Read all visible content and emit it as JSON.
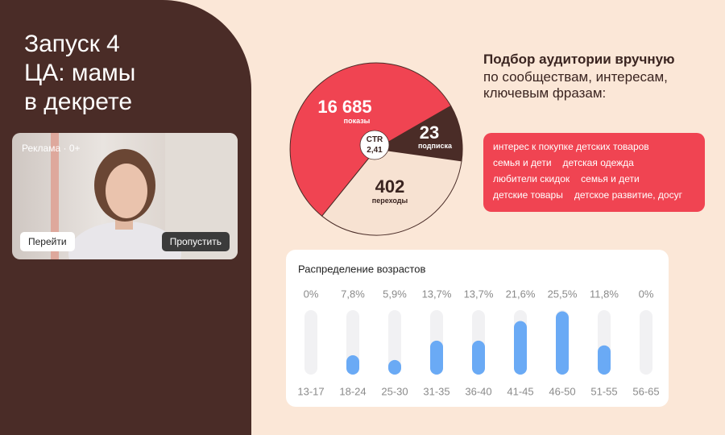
{
  "header": {
    "title_lines": [
      "Запуск 4",
      "ЦА: мамы",
      "в декрете"
    ]
  },
  "ad_preview": {
    "label": "Реклама",
    "age_rating": "0+",
    "buttons": [
      "Перейти",
      "Пропустить"
    ]
  },
  "funnel": {
    "center_label": "CTR",
    "center_value": "2,41",
    "segments": [
      {
        "value": "16 685",
        "label": "показы"
      },
      {
        "value": "23",
        "label": "подписка"
      },
      {
        "value": "402",
        "label": "переходы"
      }
    ]
  },
  "targeting": {
    "title": "Подбор аудитории вручную",
    "subtitle_lines": [
      "по сообществам, интересам,",
      "ключевым фразам:"
    ],
    "tags": [
      "интерес к покупке детских товаров",
      "семья и дети",
      "детская одежда",
      "любители скидок",
      "семья и дети",
      "детские товары",
      "детское развитие, досуг"
    ]
  },
  "chart_data": {
    "type": "bar",
    "title": "Распределение возрастов",
    "categories": [
      "13-17",
      "18-24",
      "25-30",
      "31-35",
      "36-40",
      "41-45",
      "46-50",
      "51-55",
      "56-65"
    ],
    "values": [
      0,
      7.8,
      5.9,
      13.7,
      13.7,
      21.6,
      25.5,
      11.8,
      0
    ],
    "value_labels": [
      "0%",
      "7,8%",
      "5,9%",
      "13,7%",
      "13,7%",
      "21,6%",
      "25,5%",
      "11,8%",
      "0%"
    ],
    "ylim": [
      0,
      26
    ],
    "color": "#6aaaf5",
    "track_color": "#f1f1f3"
  }
}
